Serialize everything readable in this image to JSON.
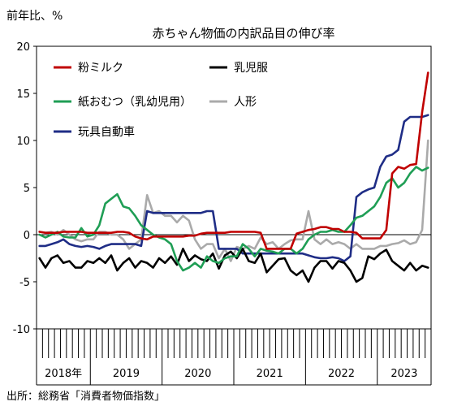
{
  "chart_data": {
    "type": "line",
    "title": "赤ちゃん物価の内訳品目の伸び率",
    "unit_label": "前年比、%",
    "source": "出所：総務省「消費者物価指数」",
    "x_labels": [
      "2018年",
      "2019",
      "2020",
      "2021",
      "2022",
      "2023"
    ],
    "months": 66,
    "ylim": [
      -10,
      20
    ],
    "yticks": [
      "20",
      "15",
      "10",
      "5",
      "0",
      "-5",
      "-10"
    ],
    "yticks_values": [
      20,
      15,
      10,
      5,
      0,
      -5,
      -10
    ],
    "legend_position": "top-left inside plot",
    "series": [
      {
        "name": "粉ミルク",
        "color": "#c00000",
        "values": [
          0.3,
          0.2,
          0.2,
          0.2,
          0.3,
          0.3,
          0.3,
          0.3,
          0.2,
          0.2,
          0.2,
          0.2,
          0.2,
          0.3,
          0.3,
          0.2,
          -0.2,
          -0.4,
          -0.5,
          -0.2,
          -0.2,
          -0.2,
          -0.2,
          -0.2,
          -0.2,
          -0.1,
          -0.1,
          0.1,
          0.2,
          0.2,
          0.2,
          0.2,
          0.3,
          0.3,
          0.3,
          0.3,
          0.3,
          0.2,
          -1.5,
          -1.5,
          -1.5,
          -1.5,
          -1.5,
          0.1,
          0.3,
          0.5,
          0.6,
          0.8,
          0.8,
          0.6,
          0.6,
          0.3,
          0.3,
          0.2,
          -0.4,
          -0.4,
          -0.4,
          -0.4,
          0.5,
          6.5,
          7.2,
          7.0,
          7.4,
          7.5,
          13.0,
          17.2
        ]
      },
      {
        "name": "乳児服",
        "color": "#000000",
        "values": [
          -2.5,
          -3.5,
          -2.5,
          -2.2,
          -3.0,
          -2.8,
          -3.5,
          -3.5,
          -2.8,
          -3.0,
          -2.5,
          -3.0,
          -2.2,
          -3.8,
          -3.0,
          -2.5,
          -3.5,
          -2.8,
          -3.0,
          -3.5,
          -2.5,
          -3.0,
          -2.3,
          -3.2,
          -1.5,
          -2.8,
          -2.2,
          -2.6,
          -2.8,
          -2.0,
          -3.6,
          -2.2,
          -1.8,
          -2.5,
          -1.5,
          -2.8,
          -3.0,
          -2.0,
          -4.0,
          -3.3,
          -2.6,
          -2.5,
          -3.8,
          -4.3,
          -3.8,
          -5.0,
          -3.5,
          -2.8,
          -2.8,
          -3.6,
          -2.8,
          -3.0,
          -3.8,
          -5.0,
          -4.6,
          -2.3,
          -2.6,
          -2.0,
          -1.6,
          -2.8,
          -3.3,
          -3.8,
          -3.0,
          -3.8,
          -3.3,
          -3.5
        ]
      },
      {
        "name": "紙おむつ（乳幼児用）",
        "color": "#1f9e55",
        "values": [
          0.0,
          -0.3,
          0.0,
          0.3,
          -0.2,
          -0.3,
          -0.3,
          0.7,
          -0.2,
          0.0,
          1.0,
          3.3,
          3.8,
          4.3,
          3.0,
          2.8,
          2.0,
          1.0,
          0.5,
          0.0,
          -0.3,
          -0.5,
          -1.0,
          -2.8,
          -3.8,
          -3.5,
          -3.0,
          -3.5,
          -2.3,
          -2.8,
          -3.0,
          -2.5,
          -2.3,
          -2.3,
          -1.0,
          -1.5,
          -2.3,
          -1.5,
          -1.7,
          -1.8,
          -2.0,
          -1.5,
          -1.5,
          -2.0,
          -1.5,
          -0.5,
          0.0,
          0.3,
          0.3,
          0.5,
          0.3,
          0.3,
          1.0,
          1.8,
          2.0,
          2.5,
          3.0,
          4.0,
          5.5,
          6.0,
          5.0,
          5.5,
          6.5,
          7.2,
          6.8,
          7.1
        ]
      },
      {
        "name": "人形",
        "color": "#aaaaaa",
        "values": [
          0.3,
          0.2,
          0.3,
          0.0,
          0.5,
          0.0,
          -0.5,
          -0.7,
          -0.5,
          -0.5,
          0.3,
          0.3,
          0.0,
          0.0,
          -0.5,
          -1.5,
          -1.0,
          -0.5,
          4.2,
          2.3,
          2.5,
          2.0,
          2.0,
          1.3,
          2.0,
          1.5,
          -0.5,
          -1.5,
          -1.0,
          -1.0,
          -2.5,
          -1.5,
          -2.8,
          -1.3,
          -1.5,
          -1.2,
          -1.5,
          -0.3,
          -1.0,
          -0.8,
          -1.5,
          -1.0,
          -0.6,
          -0.5,
          -0.5,
          2.5,
          -0.5,
          -1.0,
          -0.5,
          -1.0,
          -0.8,
          -1.0,
          -1.5,
          -1.0,
          -1.5,
          -1.5,
          -1.5,
          -1.2,
          -1.2,
          -1.0,
          -0.9,
          -0.6,
          -1.0,
          -0.8,
          0.5,
          10.0
        ]
      },
      {
        "name": "玩具自動車",
        "color": "#1f2d86",
        "values": [
          -1.2,
          -1.2,
          -1.0,
          -0.8,
          -0.5,
          -1.0,
          -1.2,
          -1.3,
          -1.2,
          -1.3,
          -1.5,
          -1.2,
          -1.0,
          -1.0,
          -1.0,
          -1.0,
          -1.0,
          -1.2,
          2.5,
          2.3,
          2.3,
          2.3,
          2.3,
          2.3,
          2.3,
          2.3,
          2.3,
          2.3,
          2.5,
          2.5,
          -1.5,
          -1.5,
          -1.5,
          -1.5,
          -2.0,
          -2.0,
          -2.0,
          -2.0,
          -2.0,
          -2.0,
          -2.0,
          -2.0,
          -2.0,
          -2.0,
          -2.0,
          -2.2,
          -2.4,
          -2.5,
          -2.5,
          -2.4,
          -2.5,
          -2.8,
          -2.3,
          4.0,
          4.5,
          4.8,
          5.0,
          7.2,
          8.3,
          8.5,
          9.0,
          12.0,
          12.5,
          12.5,
          12.5,
          12.7
        ]
      }
    ]
  }
}
